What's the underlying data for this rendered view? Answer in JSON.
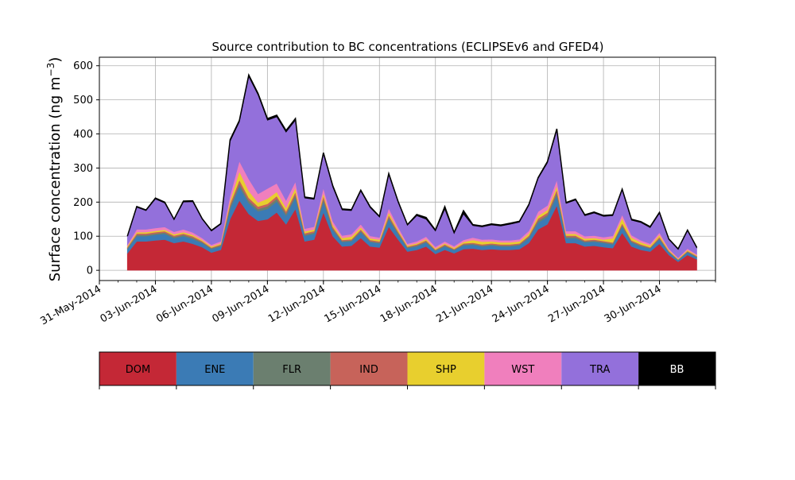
{
  "chart_data": {
    "type": "area",
    "stacked": true,
    "title": "Source contribution to BC concentrations (ECLIPSEv6 and GFED4)",
    "ylabel_main": "Surface concentration (ng m",
    "ylabel_sup": "−3",
    "ylabel_close": ")",
    "xlabel": "",
    "ylim": [
      -30,
      625
    ],
    "yticks": [
      0,
      100,
      200,
      300,
      400,
      500,
      600
    ],
    "xlim": [
      "2014-05-31T00:00",
      "2014-07-03T00:00"
    ],
    "xticks": [
      "31-May-2014",
      "03-Jun-2014",
      "06-Jun-2014",
      "09-Jun-2014",
      "12-Jun-2014",
      "15-Jun-2014",
      "18-Jun-2014",
      "21-Jun-2014",
      "24-Jun-2014",
      "27-Jun-2014",
      "30-Jun-2014"
    ],
    "xtick_dates": [
      "2014-05-31",
      "2014-06-03",
      "2014-06-06",
      "2014-06-09",
      "2014-06-12",
      "2014-06-15",
      "2014-06-18",
      "2014-06-21",
      "2014-06-24",
      "2014-06-27",
      "2014-06-30"
    ],
    "grid": true,
    "x": [
      "2014-06-01T12:00",
      "2014-06-02T00:00",
      "2014-06-02T12:00",
      "2014-06-03T00:00",
      "2014-06-03T12:00",
      "2014-06-04T00:00",
      "2014-06-04T12:00",
      "2014-06-05T00:00",
      "2014-06-05T12:00",
      "2014-06-06T00:00",
      "2014-06-06T12:00",
      "2014-06-07T00:00",
      "2014-06-07T12:00",
      "2014-06-08T00:00",
      "2014-06-08T12:00",
      "2014-06-09T00:00",
      "2014-06-09T12:00",
      "2014-06-10T00:00",
      "2014-06-10T12:00",
      "2014-06-11T00:00",
      "2014-06-11T12:00",
      "2014-06-12T00:00",
      "2014-06-12T12:00",
      "2014-06-13T00:00",
      "2014-06-13T12:00",
      "2014-06-14T00:00",
      "2014-06-14T12:00",
      "2014-06-15T00:00",
      "2014-06-15T12:00",
      "2014-06-16T00:00",
      "2014-06-16T12:00",
      "2014-06-17T00:00",
      "2014-06-17T12:00",
      "2014-06-18T00:00",
      "2014-06-18T12:00",
      "2014-06-19T00:00",
      "2014-06-19T12:00",
      "2014-06-20T00:00",
      "2014-06-20T12:00",
      "2014-06-21T00:00",
      "2014-06-21T12:00",
      "2014-06-22T00:00",
      "2014-06-22T12:00",
      "2014-06-23T00:00",
      "2014-06-23T12:00",
      "2014-06-24T00:00",
      "2014-06-24T12:00",
      "2014-06-25T00:00",
      "2014-06-25T12:00",
      "2014-06-26T00:00",
      "2014-06-26T12:00",
      "2014-06-27T00:00",
      "2014-06-27T12:00",
      "2014-06-28T00:00",
      "2014-06-28T12:00",
      "2014-06-29T00:00",
      "2014-06-29T12:00",
      "2014-06-30T00:00",
      "2014-06-30T12:00",
      "2014-07-01T00:00",
      "2014-07-01T12:00",
      "2014-07-02T00:00"
    ],
    "series": [
      {
        "name": "DOM",
        "color": "#c42836",
        "values": [
          50,
          85,
          85,
          88,
          90,
          80,
          85,
          78,
          68,
          52,
          60,
          150,
          205,
          165,
          145,
          150,
          170,
          135,
          180,
          85,
          90,
          170,
          100,
          70,
          72,
          95,
          70,
          67,
          128,
          90,
          55,
          60,
          70,
          48,
          60,
          50,
          62,
          64,
          60,
          62,
          60,
          60,
          62,
          80,
          120,
          135,
          190,
          80,
          80,
          70,
          72,
          68,
          65,
          110,
          70,
          60,
          55,
          78,
          45,
          25,
          45,
          32
        ]
      },
      {
        "name": "ENE",
        "color": "#3b7bb5",
        "values": [
          12,
          15,
          15,
          16,
          17,
          14,
          15,
          14,
          12,
          10,
          10,
          30,
          40,
          32,
          28,
          30,
          32,
          26,
          34,
          16,
          17,
          32,
          18,
          13,
          13,
          17,
          13,
          12,
          22,
          16,
          10,
          10,
          12,
          9,
          10,
          9,
          11,
          11,
          10,
          11,
          10,
          10,
          11,
          14,
          20,
          22,
          30,
          14,
          14,
          12,
          12,
          12,
          11,
          18,
          12,
          10,
          9,
          13,
          8,
          5,
          8,
          6
        ]
      },
      {
        "name": "FLR",
        "color": "#6b7f6f",
        "values": [
          3,
          4,
          4,
          4,
          4,
          4,
          4,
          4,
          3,
          3,
          3,
          8,
          10,
          8,
          7,
          8,
          8,
          6,
          8,
          4,
          4,
          8,
          5,
          3,
          3,
          4,
          3,
          3,
          6,
          4,
          3,
          3,
          3,
          2,
          3,
          2,
          3,
          3,
          3,
          3,
          3,
          3,
          3,
          4,
          6,
          6,
          8,
          4,
          4,
          3,
          3,
          3,
          3,
          5,
          3,
          3,
          2,
          3,
          2,
          1,
          2,
          2
        ]
      },
      {
        "name": "IND",
        "color": "#c7635a",
        "values": [
          3,
          4,
          4,
          4,
          4,
          4,
          4,
          4,
          3,
          2,
          3,
          7,
          10,
          8,
          7,
          7,
          8,
          6,
          8,
          4,
          4,
          8,
          5,
          3,
          3,
          4,
          3,
          3,
          6,
          4,
          2,
          3,
          3,
          2,
          3,
          2,
          3,
          3,
          3,
          3,
          3,
          3,
          3,
          4,
          6,
          6,
          9,
          4,
          4,
          3,
          3,
          3,
          3,
          5,
          3,
          3,
          2,
          4,
          2,
          1,
          2,
          2
        ]
      },
      {
        "name": "SHP",
        "color": "#e8cf2e",
        "values": [
          3,
          4,
          4,
          4,
          4,
          4,
          4,
          4,
          3,
          3,
          3,
          8,
          25,
          20,
          12,
          15,
          12,
          10,
          12,
          5,
          5,
          8,
          6,
          6,
          8,
          6,
          5,
          5,
          8,
          5,
          3,
          3,
          4,
          3,
          3,
          3,
          4,
          8,
          8,
          6,
          6,
          6,
          6,
          6,
          8,
          8,
          10,
          5,
          5,
          5,
          5,
          4,
          12,
          15,
          8,
          6,
          5,
          6,
          3,
          2,
          3,
          2
        ]
      },
      {
        "name": "WST",
        "color": "#f07fbd",
        "values": [
          4,
          8,
          8,
          8,
          8,
          7,
          8,
          7,
          6,
          5,
          6,
          15,
          30,
          35,
          25,
          30,
          25,
          22,
          18,
          8,
          8,
          15,
          10,
          7,
          7,
          9,
          7,
          6,
          12,
          8,
          5,
          6,
          7,
          5,
          6,
          5,
          6,
          7,
          6,
          6,
          6,
          6,
          6,
          8,
          12,
          13,
          18,
          8,
          8,
          7,
          7,
          7,
          7,
          10,
          7,
          6,
          5,
          7,
          4,
          3,
          4,
          3
        ]
      },
      {
        "name": "TRA",
        "color": "#9370db",
        "values": [
          25,
          65,
          55,
          85,
          70,
          35,
          80,
          90,
          55,
          40,
          50,
          160,
          115,
          300,
          290,
          200,
          195,
          200,
          180,
          90,
          80,
          100,
          100,
          75,
          69,
          97,
          83,
          60,
          98,
          72,
          54,
          75,
          51,
          46,
          94,
          37,
          76,
          35,
          37,
          42,
          42,
          47,
          50,
          74,
          97,
          125,
          145,
          81,
          91,
          60,
          66,
          61,
          59,
          72,
          44,
          52,
          47,
          56,
          26,
          24,
          52,
          18
        ]
      },
      {
        "name": "BB",
        "color": "#000000",
        "values": [
          0,
          2,
          2,
          3,
          3,
          2,
          3,
          3,
          2,
          2,
          2,
          5,
          5,
          5,
          5,
          5,
          5,
          5,
          5,
          3,
          3,
          4,
          4,
          3,
          3,
          3,
          3,
          2,
          4,
          3,
          2,
          4,
          5,
          3,
          8,
          3,
          10,
          3,
          3,
          3,
          3,
          3,
          3,
          3,
          3,
          4,
          5,
          3,
          3,
          3,
          3,
          3,
          3,
          3,
          3,
          3,
          3,
          3,
          2,
          2,
          2,
          2
        ]
      }
    ],
    "legend": {
      "placement": "bottom",
      "items": [
        "DOM",
        "ENE",
        "FLR",
        "IND",
        "SHP",
        "WST",
        "TRA",
        "BB"
      ]
    }
  }
}
